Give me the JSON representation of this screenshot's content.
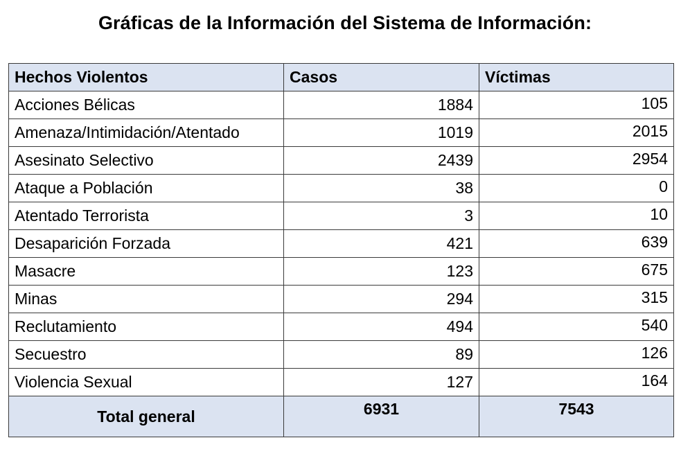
{
  "title": "Gráficas de la Información del Sistema de Información:",
  "table": {
    "headers": [
      "Hechos Violentos",
      "Casos",
      "Víctimas"
    ],
    "rows": [
      {
        "hecho": "Acciones Bélicas",
        "casos": "1884",
        "victimas": "105"
      },
      {
        "hecho": "Amenaza/Intimidación/Atentado",
        "casos": "1019",
        "victimas": "2015"
      },
      {
        "hecho": "Asesinato Selectivo",
        "casos": "2439",
        "victimas": "2954"
      },
      {
        "hecho": "Ataque a Población",
        "casos": "38",
        "victimas": "0"
      },
      {
        "hecho": "Atentado Terrorista",
        "casos": "3",
        "victimas": "10"
      },
      {
        "hecho": "Desaparición Forzada",
        "casos": "421",
        "victimas": "639"
      },
      {
        "hecho": "Masacre",
        "casos": "123",
        "victimas": "675"
      },
      {
        "hecho": "Minas",
        "casos": "294",
        "victimas": "315"
      },
      {
        "hecho": "Reclutamiento",
        "casos": "494",
        "victimas": "540"
      },
      {
        "hecho": "Secuestro",
        "casos": "89",
        "victimas": "126"
      },
      {
        "hecho": "Violencia Sexual",
        "casos": "127",
        "victimas": "164"
      }
    ],
    "total": {
      "label": "Total general",
      "casos": "6931",
      "victimas": "7543"
    }
  },
  "colors": {
    "header_background": "#dbe3f1",
    "border": "#3a3a3a"
  }
}
